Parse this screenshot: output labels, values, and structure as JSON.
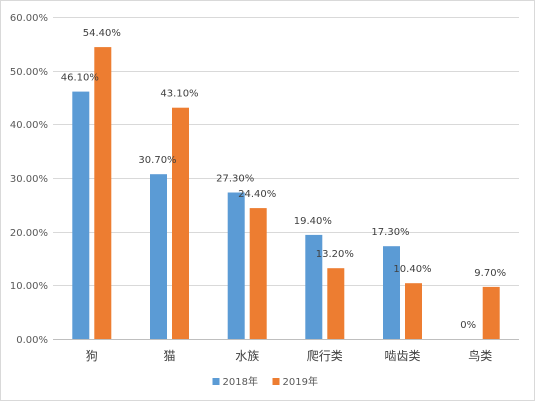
{
  "chart_data": {
    "type": "bar",
    "categories": [
      "狗",
      "猫",
      "水族",
      "爬行类",
      "啮齿类",
      "鸟类"
    ],
    "series": [
      {
        "name": "2018年",
        "values": [
          46.1,
          30.7,
          27.3,
          19.4,
          17.3,
          0
        ],
        "labels": [
          "46.10%",
          "30.70%",
          "27.30%",
          "19.40%",
          "17.30%",
          "0%"
        ],
        "color": "#5b9bd5"
      },
      {
        "name": "2019年",
        "values": [
          54.4,
          43.1,
          24.4,
          13.2,
          10.4,
          9.7
        ],
        "labels": [
          "54.40%",
          "43.10%",
          "24.40%",
          "13.20%",
          "10.40%",
          "9.70%"
        ],
        "color": "#ed7d31"
      }
    ],
    "ylim": [
      0,
      60
    ],
    "yticks": [
      0,
      10,
      20,
      30,
      40,
      50,
      60
    ],
    "ytick_labels": [
      "0.00%",
      "10.00%",
      "20.00%",
      "30.00%",
      "40.00%",
      "50.00%",
      "60.00%"
    ],
    "grid": true,
    "legend_position": "bottom",
    "title": "",
    "xlabel": "",
    "ylabel": ""
  }
}
